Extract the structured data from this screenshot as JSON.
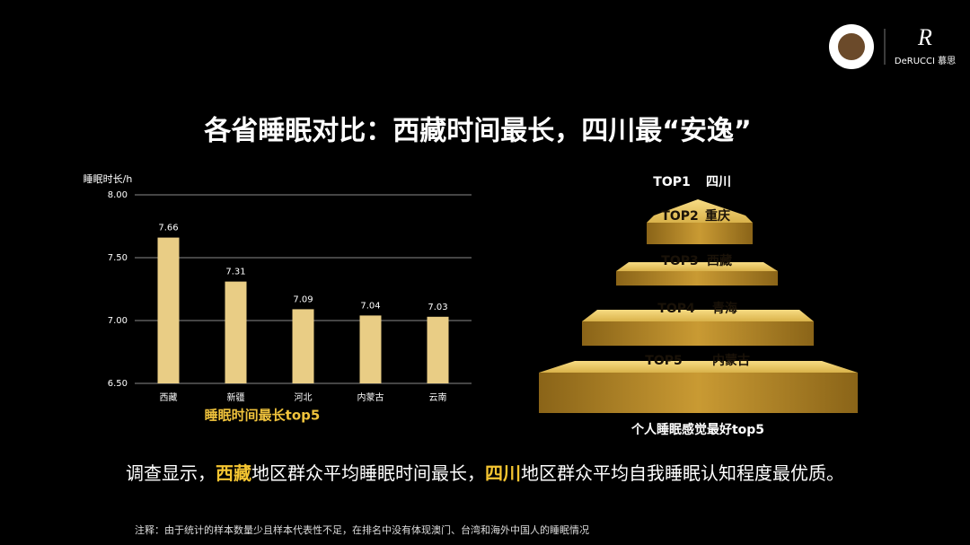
{
  "title": "各省睡眠对比：西藏时间最长，四川最“安逸”",
  "logo": {
    "brand": "DeRUCCI 慕思"
  },
  "chart_data": {
    "type": "bar",
    "title": "睡眠时间最长top5",
    "y_label": "睡眠时长/h",
    "categories": [
      "西藏",
      "新疆",
      "河北",
      "内蒙古",
      "云南"
    ],
    "values": [
      7.66,
      7.31,
      7.09,
      7.04,
      7.03
    ],
    "color": "#e9cd85",
    "ylim": [
      6.5,
      8
    ],
    "yticks": [
      {
        "value": 6.5,
        "label": "6.50"
      },
      {
        "value": 7,
        "label": "7.00"
      },
      {
        "value": 7.5,
        "label": "7.50"
      },
      {
        "value": 8,
        "label": "8.00"
      }
    ],
    "grid": true
  },
  "pyramid": {
    "caption": "个人睡眠感觉最好top5",
    "levels": [
      {
        "rank": "TOP1",
        "name": "四川"
      },
      {
        "rank": "TOP2",
        "name": "重庆"
      },
      {
        "rank": "TOP3",
        "name": "西藏"
      },
      {
        "rank": "TOP4",
        "name": "青海"
      },
      {
        "rank": "TOP5",
        "name": "内蒙古"
      }
    ]
  },
  "summary": [
    "调查显示，",
    "西藏",
    "地区群众平均睡眠时间最长，",
    "四川",
    "地区群众平均自我睡眠认知程度最优质。"
  ],
  "note": "注释：由于统计的样本数量少且样本代表性不足，在排名中没有体现澳门、台湾和海外中国人的睡眠情况"
}
